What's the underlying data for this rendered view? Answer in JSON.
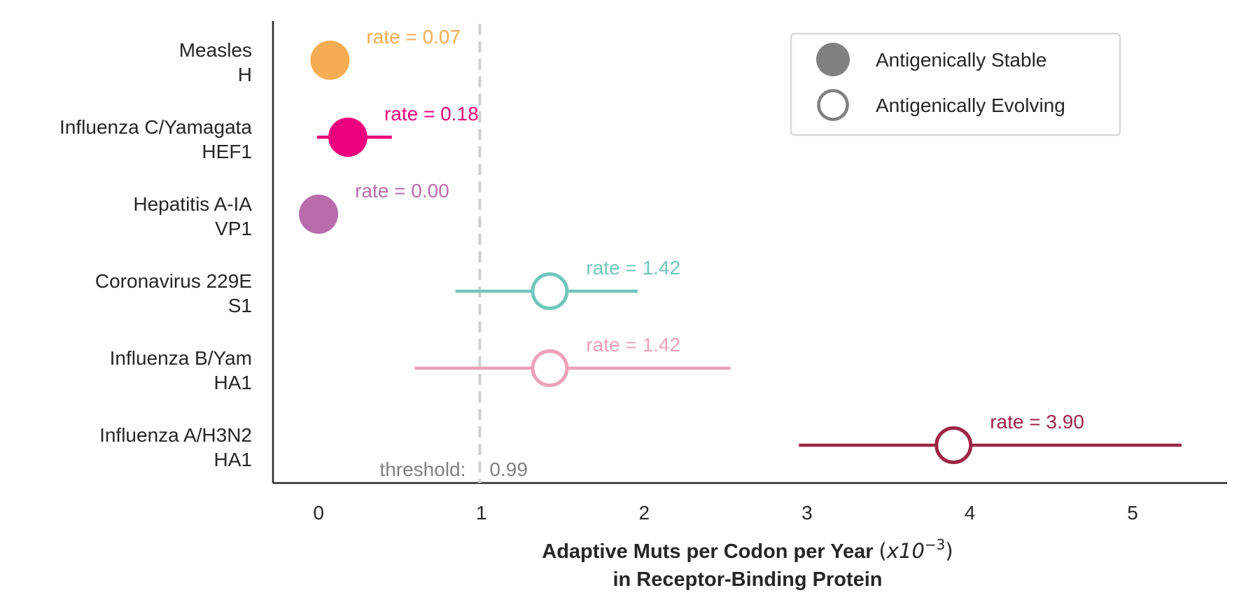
{
  "chart_data": {
    "type": "scatter",
    "subtype": "forest-plot",
    "title": "",
    "xlabel": {
      "main": "Adaptive Muts per Codon per Year",
      "unit_prefix": "(",
      "unit_x": "x10",
      "unit_exp": "−3",
      "unit_suffix": ")",
      "line2": "in Receptor-Binding Protein"
    },
    "ylabel": "",
    "xlim": [
      -0.28,
      5.58
    ],
    "xticks": [
      "0",
      "1",
      "2",
      "3",
      "4",
      "5"
    ],
    "grid": false,
    "legend_position": "top-right",
    "legend": [
      {
        "label": "Antigenically Stable",
        "marker": "filled",
        "color": "#808080"
      },
      {
        "label": "Antigenically Evolving",
        "marker": "open",
        "color": "#808080"
      }
    ],
    "threshold": {
      "value": 0.99,
      "label": "threshold:",
      "value_text": "0.99",
      "color": "#d0d0d0"
    },
    "series": [
      {
        "virus": "Measles",
        "gene": "H",
        "rate": 0.07,
        "lo": null,
        "hi": null,
        "label": "rate = 0.07",
        "color": "#f4ad52",
        "marker": "filled"
      },
      {
        "virus": "Influenza C/Yamagata",
        "gene": "HEF1",
        "rate": 0.18,
        "lo": -0.01,
        "hi": 0.45,
        "label": "rate = 0.18",
        "color": "#ec007c",
        "marker": "filled"
      },
      {
        "virus": "Hepatitis A-IA",
        "gene": "VP1",
        "rate": 0.0,
        "lo": null,
        "hi": null,
        "label": "rate = 0.00",
        "color": "#b96cab",
        "marker": "filled"
      },
      {
        "virus": "Coronavirus 229E",
        "gene": "S1",
        "rate": 1.42,
        "lo": 0.84,
        "hi": 1.96,
        "label": "rate = 1.42",
        "color": "#72c7bb",
        "marker": "open"
      },
      {
        "virus": "Influenza B/Yam",
        "gene": "HA1",
        "rate": 1.42,
        "lo": 0.59,
        "hi": 2.53,
        "label": "rate = 1.42",
        "color": "#eda1b7",
        "marker": "open"
      },
      {
        "virus": "Influenza A/H3N2",
        "gene": "HA1",
        "rate": 3.9,
        "lo": 2.95,
        "hi": 5.3,
        "label": "rate = 3.90",
        "color": "#9d2547",
        "marker": "open"
      }
    ]
  }
}
